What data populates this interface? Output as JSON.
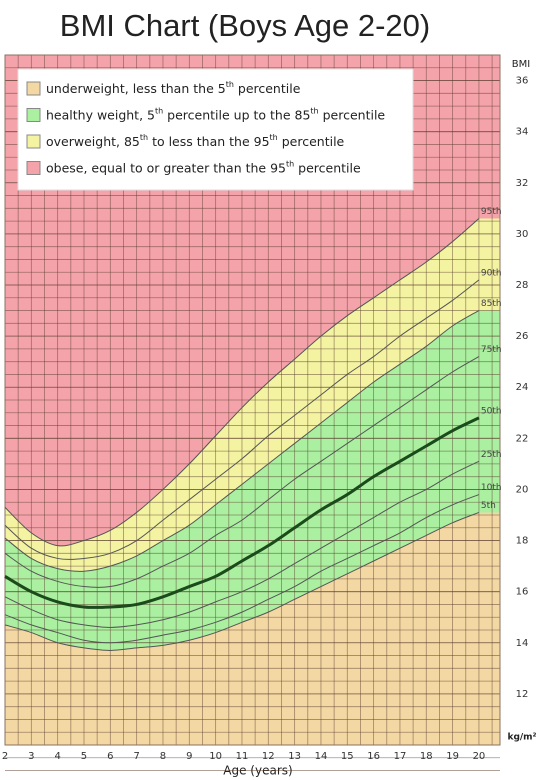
{
  "chart_data": {
    "type": "line",
    "title": "BMI Chart (Boys Age 2-20)",
    "x_label": "Age (years)",
    "y_label": "BMI",
    "y_unit": "kg/m²",
    "x": [
      2,
      3,
      4,
      5,
      6,
      7,
      8,
      9,
      10,
      11,
      12,
      13,
      14,
      15,
      16,
      17,
      18,
      19,
      20
    ],
    "xlim": [
      2,
      20.8
    ],
    "xticks": [
      2,
      3,
      4,
      5,
      6,
      7,
      8,
      9,
      10,
      11,
      12,
      13,
      14,
      15,
      16,
      17,
      18,
      19,
      20
    ],
    "ylim": [
      10,
      37
    ],
    "yticks": [
      12,
      14,
      16,
      18,
      20,
      22,
      24,
      26,
      28,
      30,
      32,
      34,
      36
    ],
    "grid": true,
    "minor_grid": true,
    "series": [
      {
        "name": "5th",
        "color": "#555555",
        "line_width": 1,
        "values": [
          14.7,
          14.4,
          14.0,
          13.8,
          13.7,
          13.8,
          13.9,
          14.1,
          14.4,
          14.8,
          15.2,
          15.7,
          16.2,
          16.7,
          17.2,
          17.7,
          18.2,
          18.7,
          19.1
        ]
      },
      {
        "name": "10th",
        "color": "#555555",
        "line_width": 1,
        "values": [
          15.1,
          14.7,
          14.4,
          14.1,
          14.0,
          14.1,
          14.3,
          14.5,
          14.8,
          15.2,
          15.7,
          16.2,
          16.8,
          17.3,
          17.8,
          18.3,
          18.9,
          19.4,
          19.8
        ]
      },
      {
        "name": "25th",
        "color": "#555555",
        "line_width": 1,
        "values": [
          15.8,
          15.3,
          14.9,
          14.7,
          14.6,
          14.7,
          14.9,
          15.2,
          15.6,
          16.0,
          16.5,
          17.1,
          17.7,
          18.3,
          18.9,
          19.5,
          20.0,
          20.6,
          21.1
        ]
      },
      {
        "name": "50th",
        "color": "#1b4a1b",
        "line_width": 3,
        "values": [
          16.6,
          16.0,
          15.6,
          15.4,
          15.4,
          15.5,
          15.8,
          16.2,
          16.6,
          17.2,
          17.8,
          18.5,
          19.2,
          19.8,
          20.5,
          21.1,
          21.7,
          22.3,
          22.8
        ]
      },
      {
        "name": "75th",
        "color": "#555555",
        "line_width": 1,
        "values": [
          17.5,
          16.8,
          16.4,
          16.2,
          16.2,
          16.5,
          17.0,
          17.5,
          18.2,
          18.8,
          19.6,
          20.4,
          21.1,
          21.8,
          22.5,
          23.2,
          23.9,
          24.6,
          25.2
        ]
      },
      {
        "name": "85th",
        "color": "#555555",
        "line_width": 1,
        "values": [
          18.1,
          17.3,
          16.9,
          16.8,
          17.0,
          17.4,
          18.0,
          18.6,
          19.4,
          20.2,
          21.0,
          21.8,
          22.6,
          23.4,
          24.2,
          24.9,
          25.6,
          26.4,
          27.0
        ]
      },
      {
        "name": "90th",
        "color": "#555555",
        "line_width": 1,
        "values": [
          18.6,
          17.7,
          17.3,
          17.3,
          17.5,
          18.0,
          18.8,
          19.6,
          20.4,
          21.2,
          22.1,
          22.9,
          23.7,
          24.5,
          25.2,
          26.0,
          26.7,
          27.4,
          28.2
        ]
      },
      {
        "name": "95th",
        "color": "#555555",
        "line_width": 1,
        "values": [
          19.3,
          18.3,
          17.8,
          18.0,
          18.4,
          19.1,
          20.0,
          21.0,
          22.1,
          23.2,
          24.2,
          25.1,
          26.0,
          26.8,
          27.5,
          28.2,
          28.9,
          29.7,
          30.6
        ]
      }
    ],
    "zones": [
      {
        "name": "underweight, less than the 5th percentile",
        "color": "#f3d8a4",
        "lower": null,
        "upper": "5th"
      },
      {
        "name": "healthy weight, 5th percentile up to the 85th percentile",
        "color": "#aaf0a0",
        "lower": "5th",
        "upper": "85th"
      },
      {
        "name": "overweight, 85th to less than the 95th percentile",
        "color": "#f3f3a2",
        "lower": "85th",
        "upper": "95th"
      },
      {
        "name": "obese, equal to or greater than the 95th percentile",
        "color": "#f5a3aa",
        "lower": "95th",
        "upper": null
      }
    ]
  }
}
